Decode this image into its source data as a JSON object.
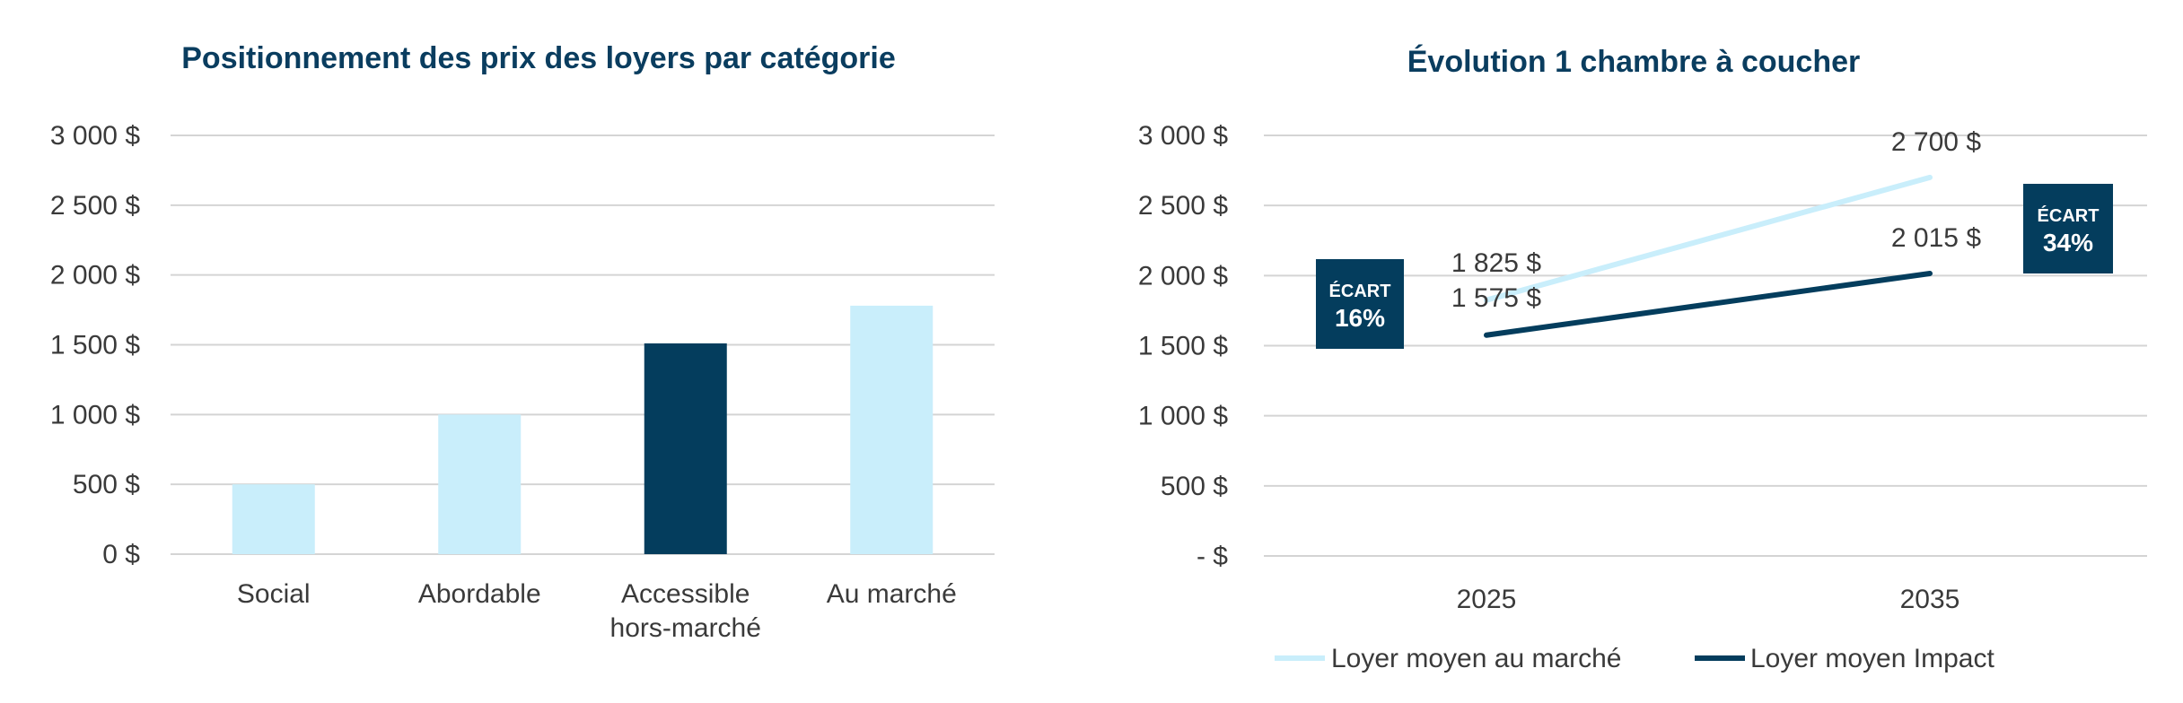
{
  "colors": {
    "light": "#c9eefb",
    "dark": "#043d5d",
    "grid": "#d4d4d4",
    "title": "#0a3d5f"
  },
  "chart_data": [
    {
      "type": "bar",
      "title": "Positionnement des prix des loyers par catégorie",
      "categories": [
        [
          "Social"
        ],
        [
          "Abordable"
        ],
        [
          "Accessible",
          "hors-marché"
        ],
        [
          "Au marché"
        ]
      ],
      "values": [
        500,
        1000,
        1510,
        1780
      ],
      "highlight_index": 2,
      "ylim": [
        0,
        3000
      ],
      "yticks": [
        {
          "value": 0,
          "label": "0 $"
        },
        {
          "value": 500,
          "label": "500 $"
        },
        {
          "value": 1000,
          "label": "1 000 $"
        },
        {
          "value": 1500,
          "label": "1 500 $"
        },
        {
          "value": 2000,
          "label": "2 000 $"
        },
        {
          "value": 2500,
          "label": "2 500 $"
        },
        {
          "value": 3000,
          "label": "3 000 $"
        }
      ],
      "grid": true,
      "legend": "none"
    },
    {
      "type": "line",
      "title": "Évolution 1 chambre à coucher",
      "x": [
        "2025",
        "2035"
      ],
      "ylim": [
        0,
        3000
      ],
      "yticks": [
        {
          "value": 0,
          "label": "-   $"
        },
        {
          "value": 500,
          "label": "500  $"
        },
        {
          "value": 1000,
          "label": "1 000  $"
        },
        {
          "value": 1500,
          "label": "1 500  $"
        },
        {
          "value": 2000,
          "label": "2 000  $"
        },
        {
          "value": 2500,
          "label": "2 500  $"
        },
        {
          "value": 3000,
          "label": "3 000  $"
        }
      ],
      "series": [
        {
          "name": "Loyer moyen au marché",
          "values": [
            1825,
            2700
          ],
          "labels": [
            "1 825  $",
            "2 700  $"
          ],
          "color_key": "light"
        },
        {
          "name": "Loyer moyen Impact",
          "values": [
            1575,
            2015
          ],
          "labels": [
            "1 575  $",
            "2 015  $"
          ],
          "color_key": "dark"
        }
      ],
      "annotations": [
        {
          "heading": "ÉCART",
          "value": "16%",
          "at": "2025"
        },
        {
          "heading": "ÉCART",
          "value": "34%",
          "at": "2035"
        }
      ],
      "grid": true,
      "legend": "bottom"
    }
  ]
}
